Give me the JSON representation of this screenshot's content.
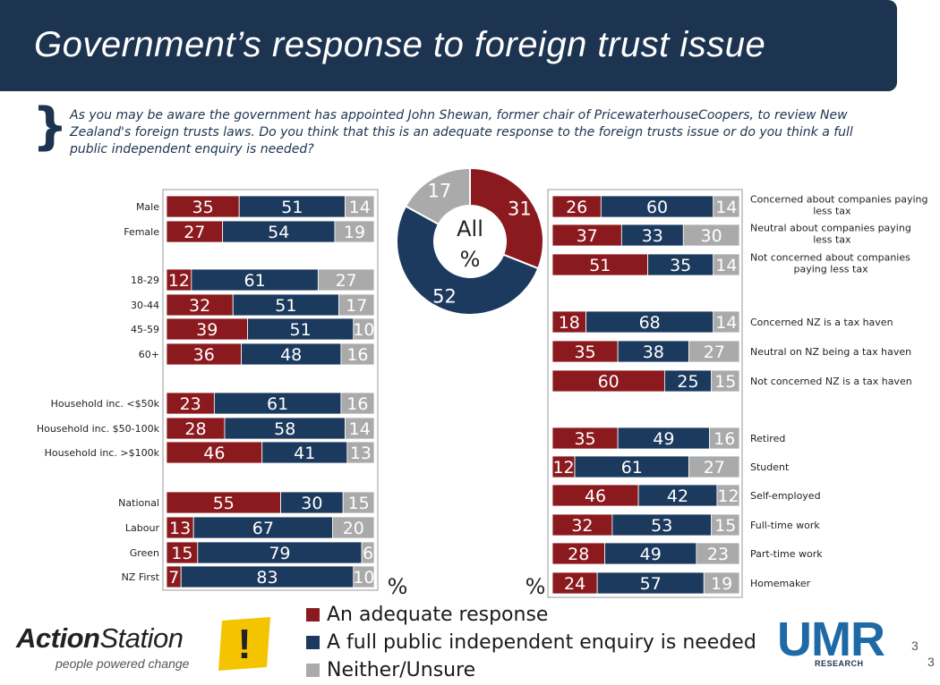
{
  "title": "Government’s response to foreign trust issue",
  "question": "As you may be aware the government has appointed John Shewan, former chair of PricewaterhouseCoopers, to review New Zealand's foreign trusts laws. Do you think that this is an adequate response to the foreign trusts issue or do you think a full public independent enquiry is needed?",
  "colors": {
    "adequate": "#8b1a1f",
    "enquiry": "#1c3a5e",
    "neither": "#aaaaaa",
    "banner": "#1c3450"
  },
  "chart_data": [
    {
      "type": "bar",
      "stacked": true,
      "orientation": "horizontal",
      "panel": "left",
      "unit_label": "%",
      "series_names": [
        "An adequate response",
        "A full public independent enquiry is needed",
        "Neither/Unsure"
      ],
      "rows": [
        {
          "label": "Male",
          "values": [
            35,
            51,
            14
          ]
        },
        {
          "label": "Female",
          "values": [
            27,
            54,
            19
          ]
        },
        {
          "label": "18-29",
          "values": [
            12,
            61,
            27
          ]
        },
        {
          "label": "30-44",
          "values": [
            32,
            51,
            17
          ]
        },
        {
          "label": "45-59",
          "values": [
            39,
            51,
            10
          ]
        },
        {
          "label": "60+",
          "values": [
            36,
            48,
            16
          ]
        },
        {
          "label": "Household inc. <$50k",
          "values": [
            23,
            61,
            16
          ]
        },
        {
          "label": "Household inc. $50-100k",
          "values": [
            28,
            58,
            14
          ]
        },
        {
          "label": "Household inc. >$100k",
          "values": [
            46,
            41,
            13
          ]
        },
        {
          "label": "National",
          "values": [
            55,
            30,
            15
          ]
        },
        {
          "label": "Labour",
          "values": [
            13,
            67,
            20
          ]
        },
        {
          "label": "Green",
          "values": [
            15,
            79,
            6
          ]
        },
        {
          "label": "NZ First",
          "values": [
            7,
            83,
            10
          ]
        }
      ]
    },
    {
      "type": "pie",
      "donut": true,
      "center_label": [
        "All",
        "%"
      ],
      "slices": [
        {
          "label": "An adequate response",
          "value": 31
        },
        {
          "label": "A full public independent enquiry is needed",
          "value": 52
        },
        {
          "label": "Neither/Unsure",
          "value": 17
        }
      ]
    },
    {
      "type": "bar",
      "stacked": true,
      "orientation": "horizontal",
      "panel": "right",
      "unit_label": "%",
      "rows": [
        {
          "label": "Concerned about companies paying less tax",
          "values": [
            26,
            60,
            14
          ]
        },
        {
          "label": "Neutral about companies paying less tax",
          "values": [
            37,
            33,
            30
          ]
        },
        {
          "label": "Not concerned about companies paying less tax",
          "values": [
            51,
            35,
            14
          ]
        },
        {
          "label": "Concerned NZ is a tax haven",
          "values": [
            18,
            68,
            14
          ]
        },
        {
          "label": "Neutral on NZ being a tax haven",
          "values": [
            35,
            38,
            27
          ]
        },
        {
          "label": "Not concerned NZ is a tax haven",
          "values": [
            60,
            25,
            15
          ]
        },
        {
          "label": "Retired",
          "values": [
            35,
            49,
            16
          ]
        },
        {
          "label": "Student",
          "values": [
            12,
            61,
            27
          ]
        },
        {
          "label": "Self-employed",
          "values": [
            46,
            42,
            12
          ]
        },
        {
          "label": "Full-time work",
          "values": [
            32,
            53,
            15
          ]
        },
        {
          "label": "Part-time work",
          "values": [
            28,
            49,
            23
          ]
        },
        {
          "label": "Homemaker",
          "values": [
            24,
            57,
            19
          ]
        }
      ]
    }
  ],
  "legend": [
    {
      "label": "An adequate response",
      "color": "#8b1a1f"
    },
    {
      "label": "A full public independent enquiry is needed",
      "color": "#1c3a5e"
    },
    {
      "label": "Neither/Unsure",
      "color": "#aaaaaa"
    }
  ],
  "logos": {
    "actionstation_bold": "Action",
    "actionstation_light": "Station",
    "actionstation_tagline": "people powered change",
    "actionstation_mark": "!",
    "umr_word": "UMR",
    "umr_sub": "RESEARCH"
  },
  "page_numbers": [
    "3",
    "3"
  ]
}
